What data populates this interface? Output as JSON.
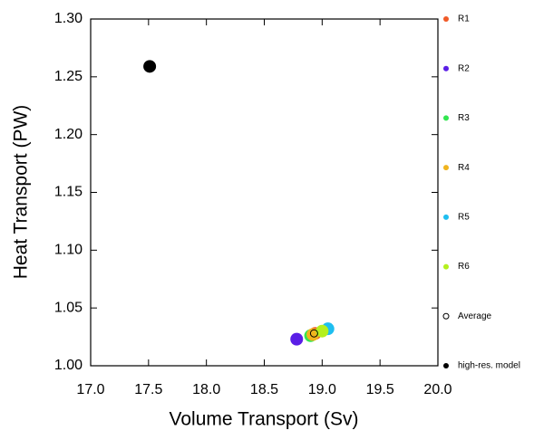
{
  "chart_data": {
    "type": "scatter",
    "xlabel": "Volume Transport (Sv)",
    "ylabel": "Heat Transport (PW)",
    "xlim": [
      17.0,
      20.0
    ],
    "ylim": [
      1.0,
      1.3
    ],
    "xticks": [
      {
        "value": 17,
        "label": "17.0"
      },
      {
        "value": 17.5,
        "label": "17.5"
      },
      {
        "value": 18,
        "label": "18.0"
      },
      {
        "value": 18.5,
        "label": "18.5"
      },
      {
        "value": 19,
        "label": "19.0"
      },
      {
        "value": 19.5,
        "label": "19.5"
      },
      {
        "value": 20,
        "label": "20.0"
      }
    ],
    "yticks": [
      {
        "value": 1,
        "label": "1.00"
      },
      {
        "value": 1.05,
        "label": "1.05"
      },
      {
        "value": 1.1,
        "label": "1.10"
      },
      {
        "value": 1.15,
        "label": "1.15"
      },
      {
        "value": 1.2,
        "label": "1.20"
      },
      {
        "value": 1.25,
        "label": "1.25"
      },
      {
        "value": 1.3,
        "label": "1.30"
      }
    ],
    "series": [
      {
        "name": "R1",
        "color": "#f05a28",
        "x": [
          18.94
        ],
        "values": [
          1.028
        ]
      },
      {
        "name": "R2",
        "color": "#5a1ee6",
        "x": [
          18.78
        ],
        "values": [
          1.023
        ]
      },
      {
        "name": "R3",
        "color": "#32e650",
        "x": [
          18.9
        ],
        "values": [
          1.026
        ]
      },
      {
        "name": "R4",
        "color": "#f0b41e",
        "x": [
          18.92
        ],
        "values": [
          1.027
        ]
      },
      {
        "name": "R5",
        "color": "#1ebef0",
        "x": [
          19.05
        ],
        "values": [
          1.032
        ]
      },
      {
        "name": "R6",
        "color": "#b4f01e",
        "x": [
          19.0
        ],
        "values": [
          1.03
        ]
      },
      {
        "name": "Average",
        "color": "#000000",
        "hollow": true,
        "x": [
          18.93
        ],
        "values": [
          1.028
        ]
      },
      {
        "name": "high-res. model",
        "color": "#000000",
        "x": [
          17.51
        ],
        "values": [
          1.259
        ]
      }
    ]
  }
}
